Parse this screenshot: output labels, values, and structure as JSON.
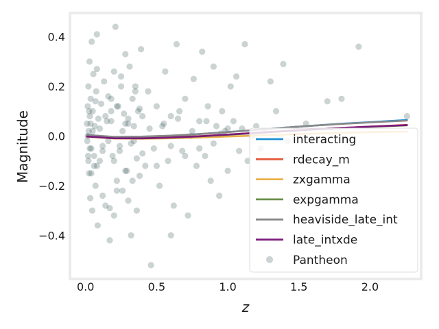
{
  "chart_data": {
    "type": "scatter",
    "xlabel": "z",
    "ylabel": "Magnitude",
    "xlim": [
      -0.1,
      2.35
    ],
    "ylim": [
      -0.57,
      0.49
    ],
    "xticks": [
      0.0,
      0.5,
      1.0,
      1.5,
      2.0
    ],
    "xtick_labels": [
      "0.0",
      "0.5",
      "1.0",
      "1.5",
      "2.0"
    ],
    "yticks": [
      -0.4,
      -0.2,
      0.0,
      0.2,
      0.4
    ],
    "ytick_labels": [
      "−0.4",
      "−0.2",
      "0.0",
      "0.2",
      "0.4"
    ],
    "grid": false,
    "legend": {
      "placement": "center-right"
    },
    "series": [
      {
        "name": "interacting",
        "kind": "line",
        "color": "#1f8fd0",
        "x": [
          0.01,
          0.2,
          0.4,
          0.6,
          0.8,
          1.0,
          1.2,
          1.4,
          1.6,
          1.8,
          2.0,
          2.26
        ],
        "y": [
          0.005,
          -0.004,
          -0.003,
          0.001,
          0.008,
          0.016,
          0.025,
          0.034,
          0.042,
          0.05,
          0.056,
          0.065
        ]
      },
      {
        "name": "rdecay_m",
        "kind": "line",
        "color": "#e45a3a",
        "x": [
          0.01,
          0.2,
          0.4,
          0.6,
          0.8,
          1.0,
          1.2,
          1.4,
          1.6,
          1.8,
          2.0,
          2.26
        ],
        "y": [
          0.0,
          -0.008,
          -0.008,
          -0.005,
          0.0,
          0.006,
          0.013,
          0.02,
          0.027,
          0.033,
          0.038,
          0.045
        ]
      },
      {
        "name": "zxgamma",
        "kind": "line",
        "color": "#e8b04a",
        "x": [
          0.01,
          0.2,
          0.4,
          0.6,
          0.8,
          1.0,
          1.2,
          1.4,
          1.6,
          1.8,
          2.0,
          2.26
        ],
        "y": [
          -0.003,
          -0.01,
          -0.011,
          -0.009,
          -0.006,
          -0.002,
          0.002,
          0.006,
          0.01,
          0.013,
          0.016,
          0.018
        ]
      },
      {
        "name": "expgamma",
        "kind": "line",
        "color": "#6a8f4a",
        "x": [
          0.01,
          0.2,
          0.4,
          0.6,
          0.8,
          1.0,
          1.2,
          1.4,
          1.6,
          1.8,
          2.0,
          2.26
        ],
        "y": [
          0.0,
          -0.008,
          -0.009,
          -0.006,
          -0.001,
          0.005,
          0.012,
          0.019,
          0.026,
          0.032,
          0.037,
          0.043
        ]
      },
      {
        "name": "heaviside_late_int",
        "kind": "line",
        "color": "#888888",
        "x": [
          0.01,
          0.2,
          0.4,
          0.6,
          0.8,
          1.0,
          1.2,
          1.4,
          1.6,
          1.8,
          2.0,
          2.26
        ],
        "y": [
          0.004,
          -0.003,
          -0.002,
          0.002,
          0.008,
          0.016,
          0.025,
          0.034,
          0.042,
          0.049,
          0.055,
          0.062
        ]
      },
      {
        "name": "late_intxde",
        "kind": "line",
        "color": "#7a1a7a",
        "x": [
          0.01,
          0.2,
          0.4,
          0.6,
          0.8,
          1.0,
          1.2,
          1.4,
          1.6,
          1.8,
          2.0,
          2.26
        ],
        "y": [
          -0.002,
          -0.009,
          -0.009,
          -0.006,
          -0.001,
          0.006,
          0.013,
          0.02,
          0.027,
          0.033,
          0.038,
          0.044
        ]
      },
      {
        "name": "Pantheon",
        "kind": "scatter",
        "color": "#2f4f4f",
        "x": [
          0.01,
          0.012,
          0.015,
          0.018,
          0.02,
          0.022,
          0.025,
          0.028,
          0.03,
          0.033,
          0.036,
          0.04,
          0.043,
          0.047,
          0.05,
          0.055,
          0.06,
          0.065,
          0.07,
          0.075,
          0.08,
          0.085,
          0.09,
          0.1,
          0.11,
          0.12,
          0.13,
          0.14,
          0.15,
          0.16,
          0.17,
          0.18,
          0.19,
          0.2,
          0.21,
          0.22,
          0.23,
          0.24,
          0.25,
          0.26,
          0.27,
          0.28,
          0.29,
          0.3,
          0.31,
          0.32,
          0.33,
          0.34,
          0.35,
          0.36,
          0.37,
          0.38,
          0.39,
          0.4,
          0.42,
          0.44,
          0.46,
          0.48,
          0.5,
          0.52,
          0.54,
          0.56,
          0.58,
          0.6,
          0.62,
          0.64,
          0.66,
          0.68,
          0.7,
          0.72,
          0.74,
          0.76,
          0.78,
          0.8,
          0.82,
          0.84,
          0.86,
          0.88,
          0.9,
          0.92,
          0.94,
          0.96,
          0.98,
          1.0,
          1.02,
          1.04,
          1.06,
          1.08,
          1.1,
          1.12,
          1.14,
          1.17,
          1.2,
          1.23,
          1.26,
          1.3,
          1.34,
          1.39,
          1.42,
          1.48,
          1.55,
          1.7,
          1.8,
          1.92,
          2.26,
          0.015,
          0.02,
          0.025,
          0.03,
          0.035,
          0.04,
          0.05,
          0.06,
          0.07,
          0.08,
          0.1,
          0.12,
          0.14,
          0.16,
          0.18,
          0.2,
          0.22,
          0.24,
          0.26,
          0.28,
          0.3,
          0.32,
          0.34,
          0.36,
          0.38,
          0.4,
          0.45,
          0.5,
          0.55,
          0.6,
          0.65,
          0.7,
          0.75,
          0.8,
          0.85,
          0.9,
          0.95,
          1.0,
          0.25,
          0.3,
          0.35,
          0.2,
          0.18,
          0.22,
          0.28,
          0.33,
          0.08,
          0.12,
          0.6,
          0.17
        ],
        "y": [
          0.05,
          -0.02,
          0.12,
          -0.08,
          0.2,
          0.02,
          -0.15,
          0.3,
          0.08,
          -0.25,
          0.15,
          -0.05,
          0.38,
          -0.3,
          0.1,
          0.25,
          -0.12,
          0.04,
          -0.2,
          0.18,
          0.41,
          -0.36,
          0.07,
          -0.1,
          0.13,
          -0.04,
          0.22,
          -0.28,
          0.06,
          0.16,
          -0.42,
          0.1,
          -0.08,
          0.26,
          0.44,
          -0.18,
          0.12,
          -0.06,
          0.2,
          -0.22,
          0.09,
          0.33,
          -0.14,
          0.05,
          0.28,
          -0.4,
          0.15,
          -0.02,
          0.2,
          -0.3,
          0.1,
          -0.16,
          0.35,
          0.08,
          -0.12,
          0.18,
          -0.52,
          -0.05,
          0.12,
          -0.2,
          0.04,
          0.26,
          -0.1,
          0.08,
          -0.28,
          0.37,
          0.1,
          -0.06,
          0.15,
          -0.32,
          0.0,
          0.23,
          -0.12,
          0.06,
          0.34,
          -0.08,
          0.12,
          -0.18,
          0.28,
          0.04,
          -0.24,
          0.1,
          0.02,
          -0.14,
          0.2,
          0.06,
          0.24,
          -0.06,
          0.03,
          0.37,
          -0.1,
          0.0,
          0.04,
          -0.05,
          0.02,
          0.22,
          0.1,
          0.29,
          -0.02,
          0.03,
          0.05,
          0.14,
          0.15,
          0.36,
          0.08,
          0.0,
          -0.1,
          0.1,
          -0.05,
          0.05,
          -0.15,
          0.02,
          -0.08,
          0.14,
          -0.12,
          0.03,
          -0.06,
          0.08,
          -0.02,
          0.06,
          -0.1,
          0.12,
          -0.04,
          0.02,
          -0.14,
          0.07,
          -0.03,
          0.04,
          -0.09,
          0.11,
          -0.07,
          0.03,
          -0.12,
          0.05,
          -0.04,
          0.07,
          -0.08,
          0.02,
          -0.05,
          0.06,
          -0.03,
          0.01,
          0.03,
          0.24,
          -0.26,
          0.18,
          -0.32,
          0.15,
          -0.22,
          0.05,
          -0.18,
          0.27,
          -0.24,
          -0.4,
          -0.29
        ]
      }
    ]
  }
}
